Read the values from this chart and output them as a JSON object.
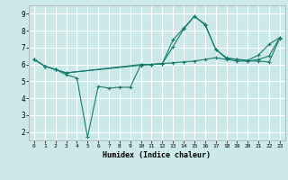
{
  "title": "",
  "xlabel": "Humidex (Indice chaleur)",
  "ylabel": "",
  "background_color": "#cce8e8",
  "grid_color": "#ffffff",
  "line_color": "#1a7a6e",
  "xlim": [
    -0.5,
    23.5
  ],
  "ylim": [
    1.5,
    9.5
  ],
  "xticks": [
    0,
    1,
    2,
    3,
    4,
    5,
    6,
    7,
    8,
    9,
    10,
    11,
    12,
    13,
    14,
    15,
    16,
    17,
    18,
    19,
    20,
    21,
    22,
    23
  ],
  "yticks": [
    2,
    3,
    4,
    5,
    6,
    7,
    8,
    9
  ],
  "series": [
    {
      "x": [
        0,
        1,
        2,
        3,
        4,
        5,
        6,
        7,
        8,
        9,
        10,
        11,
        12,
        13,
        14,
        15,
        16,
        17,
        18,
        19,
        20,
        21,
        22,
        23
      ],
      "y": [
        6.3,
        5.9,
        5.7,
        5.4,
        5.2,
        1.7,
        4.7,
        4.6,
        4.65,
        4.65,
        6.0,
        6.0,
        6.05,
        6.1,
        6.15,
        6.2,
        6.3,
        6.4,
        6.3,
        6.2,
        6.2,
        6.3,
        6.5,
        7.6
      ]
    },
    {
      "x": [
        0,
        1,
        2,
        3,
        10,
        11,
        12,
        13,
        14,
        15,
        16,
        17,
        18,
        19,
        20,
        21,
        22,
        23
      ],
      "y": [
        6.3,
        5.9,
        5.7,
        5.5,
        6.0,
        6.0,
        6.05,
        7.05,
        8.1,
        8.85,
        8.4,
        6.9,
        6.4,
        6.3,
        6.25,
        6.55,
        7.2,
        7.6
      ]
    },
    {
      "x": [
        0,
        1,
        2,
        3,
        10,
        11,
        12,
        13,
        14,
        15,
        16,
        17,
        18,
        19,
        20,
        21,
        22,
        23
      ],
      "y": [
        6.3,
        5.9,
        5.7,
        5.5,
        5.95,
        6.0,
        6.05,
        7.45,
        8.15,
        8.85,
        8.35,
        6.9,
        6.35,
        6.3,
        6.2,
        6.2,
        6.15,
        7.55
      ]
    }
  ],
  "font_family": "monospace"
}
